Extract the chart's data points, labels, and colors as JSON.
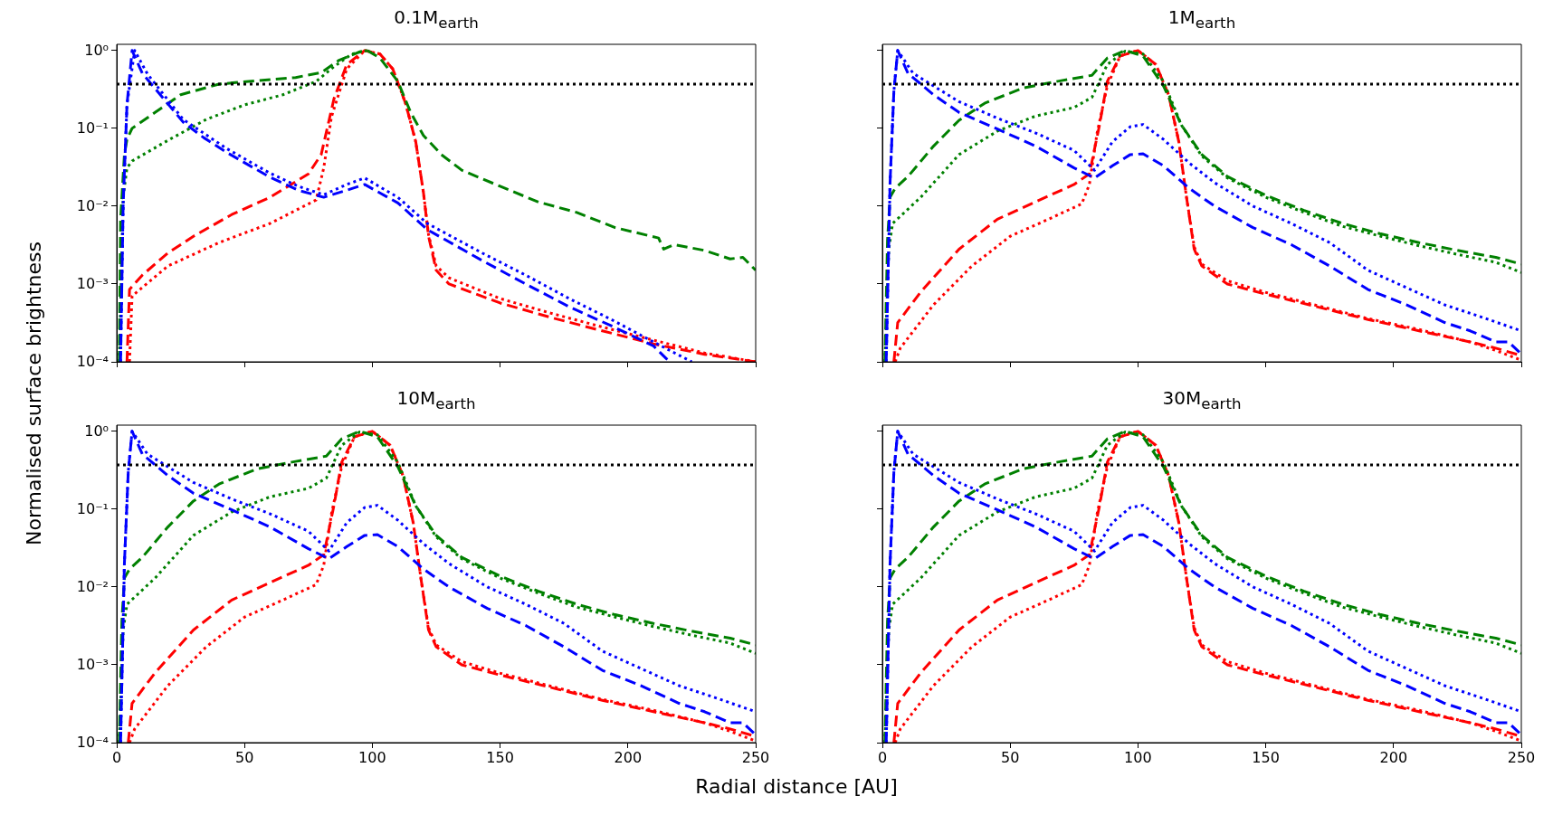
{
  "chart_data": [
    {
      "type": "line",
      "title": "0.1M$_{earth}$",
      "ylabel": "Normalised surface brightness",
      "log": "y",
      "tick_labels": "y",
      "xlim": [
        0,
        250
      ],
      "xticks": [
        {
          "value": 0,
          "label": null
        },
        {
          "value": 50,
          "label": null
        },
        {
          "value": 100,
          "label": null
        },
        {
          "value": 150,
          "label": null
        },
        {
          "value": 200,
          "label": null
        },
        {
          "value": 250,
          "label": null
        }
      ],
      "ylim": [
        0.0001,
        1.2
      ],
      "yticks": [
        {
          "value": 0.0001,
          "label": "10⁻⁴"
        },
        {
          "value": 0.001,
          "label": "10⁻³"
        },
        {
          "value": 0.01,
          "label": "10⁻²"
        },
        {
          "value": 0.1,
          "label": "10⁻¹"
        },
        {
          "value": 1,
          "label": "10⁰"
        }
      ],
      "ref_lines": [
        {
          "axis": "y",
          "value": 0.37,
          "color": "#000000",
          "line_style": "dotted"
        }
      ],
      "series": [
        {
          "color": "#0000ff",
          "line_style": "dashed",
          "x": [
            1.5,
            2.5,
            4,
            6,
            10,
            26,
            34,
            43,
            59.5,
            71,
            81,
            90,
            97,
            110,
            121.5,
            143,
            160,
            177,
            193.5,
            210,
            215,
            217
          ],
          "values": [
            0.0001,
            0.01,
            0.2,
            1.0,
            0.51,
            0.12,
            0.076,
            0.049,
            0.024,
            0.016,
            0.013,
            0.016,
            0.019,
            0.011,
            0.005,
            0.002,
            0.001,
            0.00051,
            0.00029,
            0.00016,
            0.00011,
            0.0001
          ]
        },
        {
          "color": "#0000ff",
          "line_style": "dotted",
          "x": [
            1.5,
            2.5,
            4,
            7,
            12,
            26,
            43,
            59.5,
            71,
            81,
            90,
            97,
            110,
            121.5,
            143,
            160,
            177,
            193.5,
            210,
            225
          ],
          "values": [
            0.0001,
            0.01,
            0.2,
            1.0,
            0.5,
            0.13,
            0.055,
            0.027,
            0.018,
            0.014,
            0.019,
            0.023,
            0.013,
            0.006,
            0.0025,
            0.0013,
            0.00065,
            0.00035,
            0.00018,
            0.0001
          ]
        },
        {
          "color": "#008000",
          "line_style": "dashed",
          "x": [
            1,
            1.5,
            3,
            4,
            6,
            15,
            25,
            40,
            55,
            70,
            80,
            87,
            95,
            98,
            103,
            110,
            115,
            120,
            127,
            135,
            150,
            165,
            180,
            195,
            212,
            214,
            218,
            230,
            240,
            245,
            250
          ],
          "values": [
            0.0001,
            0.0068,
            0.046,
            0.072,
            0.1,
            0.16,
            0.27,
            0.37,
            0.41,
            0.45,
            0.52,
            0.75,
            0.96,
            1.0,
            0.8,
            0.4,
            0.16,
            0.081,
            0.046,
            0.029,
            0.018,
            0.0113,
            0.0083,
            0.0053,
            0.0039,
            0.0028,
            0.0032,
            0.0027,
            0.0021,
            0.0022,
            0.0015
          ]
        },
        {
          "color": "#008000",
          "line_style": "dotted",
          "x": [
            1,
            2.5,
            4,
            6,
            20,
            35,
            50,
            65,
            78,
            85,
            92,
            98
          ],
          "values": [
            0.0001,
            0.013,
            0.031,
            0.038,
            0.07,
            0.13,
            0.2,
            0.27,
            0.4,
            0.62,
            0.9,
            1.0
          ]
        },
        {
          "color": "#ff0000",
          "line_style": "dashed",
          "x": [
            4,
            5,
            10,
            20,
            30,
            45,
            60,
            75,
            80,
            85,
            90,
            97,
            103,
            108,
            113,
            117,
            120,
            122,
            125,
            130,
            150,
            170,
            190,
            210,
            230,
            250
          ],
          "values": [
            0.0001,
            0.00085,
            0.0013,
            0.0025,
            0.0041,
            0.0078,
            0.013,
            0.026,
            0.046,
            0.24,
            0.66,
            1.0,
            0.9,
            0.58,
            0.21,
            0.067,
            0.015,
            0.0041,
            0.0015,
            0.001,
            0.00057,
            0.00037,
            0.00025,
            0.00017,
            0.000125,
            0.0001
          ]
        },
        {
          "color": "#ff0000",
          "line_style": "dotted",
          "x": [
            5,
            6,
            20,
            40,
            60,
            78,
            81,
            84,
            90,
            97,
            103,
            108,
            113,
            117,
            120,
            122,
            125,
            130,
            150,
            170,
            190,
            210,
            230,
            250
          ],
          "values": [
            0.0001,
            0.0007,
            0.0017,
            0.0034,
            0.006,
            0.012,
            0.031,
            0.14,
            0.58,
            1.0,
            0.9,
            0.58,
            0.21,
            0.067,
            0.015,
            0.0043,
            0.0017,
            0.0012,
            0.00065,
            0.00042,
            0.00028,
            0.00019,
            0.00013,
            0.0001
          ]
        }
      ]
    },
    {
      "type": "line",
      "title": "1M$_{earth}$",
      "log": "y",
      "tick_labels": false,
      "xlim": [
        0,
        250
      ],
      "xticks": [
        {
          "value": 0,
          "label": null
        },
        {
          "value": 50,
          "label": null
        },
        {
          "value": 100,
          "label": null
        },
        {
          "value": 150,
          "label": null
        },
        {
          "value": 200,
          "label": null
        },
        {
          "value": 250,
          "label": null
        }
      ],
      "ylim": [
        0.0001,
        1.2
      ],
      "yticks": [
        {
          "value": 0.0001,
          "label": null
        },
        {
          "value": 0.001,
          "label": null
        },
        {
          "value": 0.01,
          "label": null
        },
        {
          "value": 0.1,
          "label": null
        },
        {
          "value": 1,
          "label": null
        }
      ],
      "ref_lines": [
        {
          "axis": "y",
          "value": 0.37,
          "color": "#000000",
          "line_style": "dotted"
        }
      ],
      "series": [
        {
          "color": "#0000ff",
          "line_style": "dashed",
          "x": [
            1.5,
            3,
            4.5,
            6,
            10,
            20,
            30,
            45,
            60,
            75,
            83,
            90,
            97,
            102,
            110,
            120,
            130,
            145,
            160,
            175,
            190,
            205,
            220,
            230,
            240,
            245,
            250
          ],
          "values": [
            0.0001,
            0.02,
            0.3,
            1.0,
            0.51,
            0.27,
            0.16,
            0.098,
            0.059,
            0.031,
            0.023,
            0.033,
            0.046,
            0.047,
            0.033,
            0.017,
            0.01,
            0.0053,
            0.0032,
            0.0017,
            0.00085,
            0.00054,
            0.00032,
            0.00025,
            0.00018,
            0.00018,
            0.000126
          ]
        },
        {
          "color": "#0000ff",
          "line_style": "dotted",
          "x": [
            1.5,
            3,
            4.5,
            6,
            12,
            20,
            30,
            45,
            60,
            75,
            83,
            90,
            97,
            102,
            110,
            120,
            130,
            145,
            160,
            175,
            190,
            205,
            220,
            235,
            250
          ],
          "values": [
            0.0001,
            0.02,
            0.3,
            1.0,
            0.51,
            0.35,
            0.22,
            0.135,
            0.087,
            0.052,
            0.029,
            0.067,
            0.105,
            0.112,
            0.072,
            0.036,
            0.02,
            0.01,
            0.006,
            0.0034,
            0.0015,
            0.0009,
            0.00054,
            0.00037,
            0.00025
          ]
        },
        {
          "color": "#008000",
          "line_style": "dashed",
          "x": [
            1,
            2,
            3,
            5,
            10,
            20,
            30,
            40,
            55,
            70,
            82,
            88,
            95,
            102,
            110,
            117,
            125,
            135,
            150,
            165,
            180,
            195,
            210,
            225,
            240,
            250
          ],
          "values": [
            0.0001,
            0.0036,
            0.013,
            0.017,
            0.024,
            0.059,
            0.127,
            0.21,
            0.33,
            0.41,
            0.48,
            0.8,
            1.0,
            0.85,
            0.35,
            0.11,
            0.046,
            0.024,
            0.0138,
            0.0088,
            0.006,
            0.0044,
            0.0034,
            0.0027,
            0.0022,
            0.0018
          ]
        },
        {
          "color": "#008000",
          "line_style": "dotted",
          "x": [
            1,
            2.5,
            4,
            15,
            30,
            45,
            60,
            75,
            82,
            88,
            95,
            102,
            110,
            117,
            125,
            135,
            150,
            165,
            180,
            195,
            210,
            225,
            240,
            250
          ],
          "values": [
            0.0001,
            0.0028,
            0.006,
            0.013,
            0.046,
            0.092,
            0.144,
            0.185,
            0.25,
            0.66,
            0.98,
            0.9,
            0.4,
            0.11,
            0.044,
            0.023,
            0.013,
            0.0083,
            0.0055,
            0.0041,
            0.0031,
            0.0024,
            0.0019,
            0.0014
          ]
        },
        {
          "color": "#ff0000",
          "line_style": "dashed",
          "x": [
            4.5,
            6,
            15,
            30,
            45,
            60,
            75,
            81,
            85,
            88,
            93,
            100,
            107,
            112,
            116,
            119,
            122,
            125,
            135,
            150,
            170,
            190,
            210,
            230,
            240,
            250
          ],
          "values": [
            0.0001,
            0.00032,
            0.00079,
            0.0028,
            0.0068,
            0.0114,
            0.019,
            0.026,
            0.112,
            0.4,
            0.85,
            1.0,
            0.66,
            0.27,
            0.067,
            0.013,
            0.0028,
            0.0017,
            0.001,
            0.00074,
            0.00051,
            0.00035,
            0.00025,
            0.00018,
            0.00015,
            0.00012
          ]
        },
        {
          "color": "#ff0000",
          "line_style": "dotted",
          "x": [
            5,
            7,
            20,
            35,
            50,
            65,
            78,
            81,
            84,
            88,
            93,
            100,
            107,
            112,
            116,
            119,
            122,
            125,
            135,
            150,
            170,
            190,
            210,
            230,
            240,
            250
          ],
          "values": [
            0.0001,
            0.00015,
            0.00054,
            0.0017,
            0.0041,
            0.0068,
            0.0107,
            0.019,
            0.087,
            0.35,
            0.85,
            1.0,
            0.66,
            0.27,
            0.067,
            0.013,
            0.003,
            0.0018,
            0.0011,
            0.00078,
            0.00053,
            0.00036,
            0.00026,
            0.00018,
            0.00014,
            0.000105
          ]
        }
      ]
    },
    {
      "type": "line",
      "title": "10M$_{earth}$",
      "xlabel": "Radial distance [AU]",
      "log": "y",
      "xlim": [
        0,
        250
      ],
      "xticks": [
        0,
        50,
        100,
        150,
        200,
        250
      ],
      "ylim": [
        0.0001,
        1.2
      ],
      "yticks": [
        {
          "value": 0.0001,
          "label": "10⁻⁴"
        },
        {
          "value": 0.001,
          "label": "10⁻³"
        },
        {
          "value": 0.01,
          "label": "10⁻²"
        },
        {
          "value": 0.1,
          "label": "10⁻¹"
        },
        {
          "value": 1,
          "label": "10⁰"
        }
      ],
      "ref_lines": [
        {
          "axis": "y",
          "value": 0.37,
          "color": "#000000",
          "line_style": "dotted"
        }
      ],
      "series": [
        {
          "color": "#0000ff",
          "line_style": "dashed",
          "x": [
            1.5,
            3,
            4.5,
            6,
            10,
            20,
            30,
            45,
            60,
            75,
            83,
            90,
            97,
            102,
            110,
            120,
            130,
            145,
            160,
            175,
            190,
            205,
            220,
            230,
            240,
            245,
            250
          ],
          "values": [
            0.0001,
            0.02,
            0.3,
            1.0,
            0.51,
            0.27,
            0.16,
            0.098,
            0.059,
            0.031,
            0.023,
            0.033,
            0.046,
            0.047,
            0.033,
            0.017,
            0.01,
            0.0053,
            0.0032,
            0.0017,
            0.00085,
            0.00054,
            0.00032,
            0.00025,
            0.00018,
            0.00018,
            0.000126
          ]
        },
        {
          "color": "#0000ff",
          "line_style": "dotted",
          "x": [
            1.5,
            3,
            4.5,
            6,
            12,
            20,
            30,
            45,
            60,
            75,
            83,
            90,
            97,
            102,
            110,
            120,
            130,
            145,
            160,
            175,
            190,
            205,
            220,
            235,
            250
          ],
          "values": [
            0.0001,
            0.02,
            0.3,
            1.0,
            0.51,
            0.35,
            0.22,
            0.135,
            0.087,
            0.052,
            0.029,
            0.067,
            0.105,
            0.112,
            0.072,
            0.036,
            0.02,
            0.01,
            0.006,
            0.0034,
            0.0015,
            0.0009,
            0.00054,
            0.00037,
            0.00025
          ]
        },
        {
          "color": "#008000",
          "line_style": "dashed",
          "x": [
            1,
            2,
            3,
            5,
            10,
            20,
            30,
            40,
            55,
            70,
            82,
            88,
            95,
            102,
            110,
            117,
            125,
            135,
            150,
            165,
            180,
            195,
            210,
            225,
            240,
            250
          ],
          "values": [
            0.0001,
            0.0036,
            0.013,
            0.017,
            0.024,
            0.059,
            0.127,
            0.21,
            0.33,
            0.41,
            0.48,
            0.8,
            1.0,
            0.85,
            0.35,
            0.11,
            0.046,
            0.024,
            0.0138,
            0.0088,
            0.006,
            0.0044,
            0.0034,
            0.0027,
            0.0022,
            0.0018
          ]
        },
        {
          "color": "#008000",
          "line_style": "dotted",
          "x": [
            1,
            2.5,
            4,
            15,
            30,
            45,
            60,
            75,
            82,
            88,
            95,
            102,
            110,
            117,
            125,
            135,
            150,
            165,
            180,
            195,
            210,
            225,
            240,
            250
          ],
          "values": [
            0.0001,
            0.0028,
            0.006,
            0.013,
            0.046,
            0.092,
            0.144,
            0.185,
            0.25,
            0.66,
            0.98,
            0.9,
            0.4,
            0.11,
            0.044,
            0.023,
            0.013,
            0.0083,
            0.0055,
            0.0041,
            0.0031,
            0.0024,
            0.0019,
            0.0014
          ]
        },
        {
          "color": "#ff0000",
          "line_style": "dashed",
          "x": [
            4.5,
            6,
            15,
            30,
            45,
            60,
            75,
            81,
            85,
            88,
            93,
            100,
            107,
            112,
            116,
            119,
            122,
            125,
            135,
            150,
            170,
            190,
            210,
            230,
            240,
            250
          ],
          "values": [
            0.0001,
            0.00032,
            0.00079,
            0.0028,
            0.0068,
            0.0114,
            0.019,
            0.026,
            0.112,
            0.4,
            0.85,
            1.0,
            0.66,
            0.27,
            0.067,
            0.013,
            0.0028,
            0.0017,
            0.001,
            0.00074,
            0.00051,
            0.00035,
            0.00025,
            0.00018,
            0.00015,
            0.00012
          ]
        },
        {
          "color": "#ff0000",
          "line_style": "dotted",
          "x": [
            5,
            7,
            20,
            35,
            50,
            65,
            78,
            81,
            84,
            88,
            93,
            100,
            107,
            112,
            116,
            119,
            122,
            125,
            135,
            150,
            170,
            190,
            210,
            230,
            240,
            250
          ],
          "values": [
            0.0001,
            0.00015,
            0.00054,
            0.0017,
            0.0041,
            0.0068,
            0.0107,
            0.019,
            0.087,
            0.35,
            0.85,
            1.0,
            0.66,
            0.27,
            0.067,
            0.013,
            0.003,
            0.0018,
            0.0011,
            0.00078,
            0.00053,
            0.00036,
            0.00026,
            0.00018,
            0.00014,
            0.000105
          ]
        }
      ]
    },
    {
      "type": "line",
      "title": "30M$_{earth}$",
      "log": "y",
      "tick_labels": "x",
      "xlim": [
        0,
        250
      ],
      "xticks": [
        0,
        50,
        100,
        150,
        200,
        250
      ],
      "ylim": [
        0.0001,
        1.2
      ],
      "yticks": [
        {
          "value": 0.0001,
          "label": null
        },
        {
          "value": 0.001,
          "label": null
        },
        {
          "value": 0.01,
          "label": null
        },
        {
          "value": 0.1,
          "label": null
        },
        {
          "value": 1,
          "label": null
        }
      ],
      "ref_lines": [
        {
          "axis": "y",
          "value": 0.37,
          "color": "#000000",
          "line_style": "dotted"
        }
      ],
      "series": [
        {
          "color": "#0000ff",
          "line_style": "dashed",
          "x": [
            1.5,
            3,
            4.5,
            6,
            10,
            20,
            30,
            45,
            60,
            75,
            83,
            90,
            97,
            102,
            110,
            120,
            130,
            145,
            160,
            175,
            190,
            205,
            220,
            230,
            240,
            245,
            250
          ],
          "values": [
            0.0001,
            0.02,
            0.3,
            1.0,
            0.51,
            0.27,
            0.16,
            0.098,
            0.059,
            0.031,
            0.023,
            0.033,
            0.046,
            0.047,
            0.033,
            0.017,
            0.01,
            0.0053,
            0.0032,
            0.0017,
            0.00085,
            0.00054,
            0.00032,
            0.00025,
            0.00018,
            0.00018,
            0.000126
          ]
        },
        {
          "color": "#0000ff",
          "line_style": "dotted",
          "x": [
            1.5,
            3,
            4.5,
            6,
            12,
            20,
            30,
            45,
            60,
            75,
            83,
            90,
            97,
            102,
            110,
            120,
            130,
            145,
            160,
            175,
            190,
            205,
            220,
            235,
            250
          ],
          "values": [
            0.0001,
            0.02,
            0.3,
            1.0,
            0.51,
            0.35,
            0.22,
            0.135,
            0.087,
            0.052,
            0.029,
            0.067,
            0.105,
            0.112,
            0.072,
            0.036,
            0.02,
            0.01,
            0.006,
            0.0034,
            0.0015,
            0.0009,
            0.00054,
            0.00037,
            0.00025
          ]
        },
        {
          "color": "#008000",
          "line_style": "dashed",
          "x": [
            1,
            2,
            3,
            5,
            10,
            20,
            30,
            40,
            55,
            70,
            82,
            88,
            95,
            102,
            110,
            117,
            125,
            135,
            150,
            165,
            180,
            195,
            210,
            225,
            240,
            250
          ],
          "values": [
            0.0001,
            0.0036,
            0.013,
            0.017,
            0.024,
            0.059,
            0.127,
            0.21,
            0.33,
            0.41,
            0.48,
            0.8,
            1.0,
            0.85,
            0.35,
            0.11,
            0.046,
            0.024,
            0.0138,
            0.0088,
            0.006,
            0.0044,
            0.0034,
            0.0027,
            0.0022,
            0.0018
          ]
        },
        {
          "color": "#008000",
          "line_style": "dotted",
          "x": [
            1,
            2.5,
            4,
            15,
            30,
            45,
            60,
            75,
            82,
            88,
            95,
            102,
            110,
            117,
            125,
            135,
            150,
            165,
            180,
            195,
            210,
            225,
            240,
            250
          ],
          "values": [
            0.0001,
            0.0028,
            0.006,
            0.013,
            0.046,
            0.092,
            0.144,
            0.185,
            0.25,
            0.66,
            0.98,
            0.9,
            0.4,
            0.11,
            0.044,
            0.023,
            0.013,
            0.0083,
            0.0055,
            0.0041,
            0.0031,
            0.0024,
            0.0019,
            0.0014
          ]
        },
        {
          "color": "#ff0000",
          "line_style": "dashed",
          "x": [
            4.5,
            6,
            15,
            30,
            45,
            60,
            75,
            81,
            85,
            88,
            93,
            100,
            107,
            112,
            116,
            119,
            122,
            125,
            135,
            150,
            170,
            190,
            210,
            230,
            240,
            250
          ],
          "values": [
            0.0001,
            0.00032,
            0.00079,
            0.0028,
            0.0068,
            0.0114,
            0.019,
            0.026,
            0.112,
            0.4,
            0.85,
            1.0,
            0.66,
            0.27,
            0.067,
            0.013,
            0.0028,
            0.0017,
            0.001,
            0.00074,
            0.00051,
            0.00035,
            0.00025,
            0.00018,
            0.00015,
            0.00012
          ]
        },
        {
          "color": "#ff0000",
          "line_style": "dotted",
          "x": [
            5,
            7,
            20,
            35,
            50,
            65,
            78,
            81,
            84,
            88,
            93,
            100,
            107,
            112,
            116,
            119,
            122,
            125,
            135,
            150,
            170,
            190,
            210,
            230,
            240,
            250
          ],
          "values": [
            0.0001,
            0.00015,
            0.00054,
            0.0017,
            0.0041,
            0.0068,
            0.0107,
            0.019,
            0.087,
            0.35,
            0.85,
            1.0,
            0.66,
            0.27,
            0.067,
            0.013,
            0.003,
            0.0018,
            0.0011,
            0.00078,
            0.00053,
            0.00036,
            0.00026,
            0.00018,
            0.00014,
            0.000105
          ]
        }
      ]
    }
  ]
}
